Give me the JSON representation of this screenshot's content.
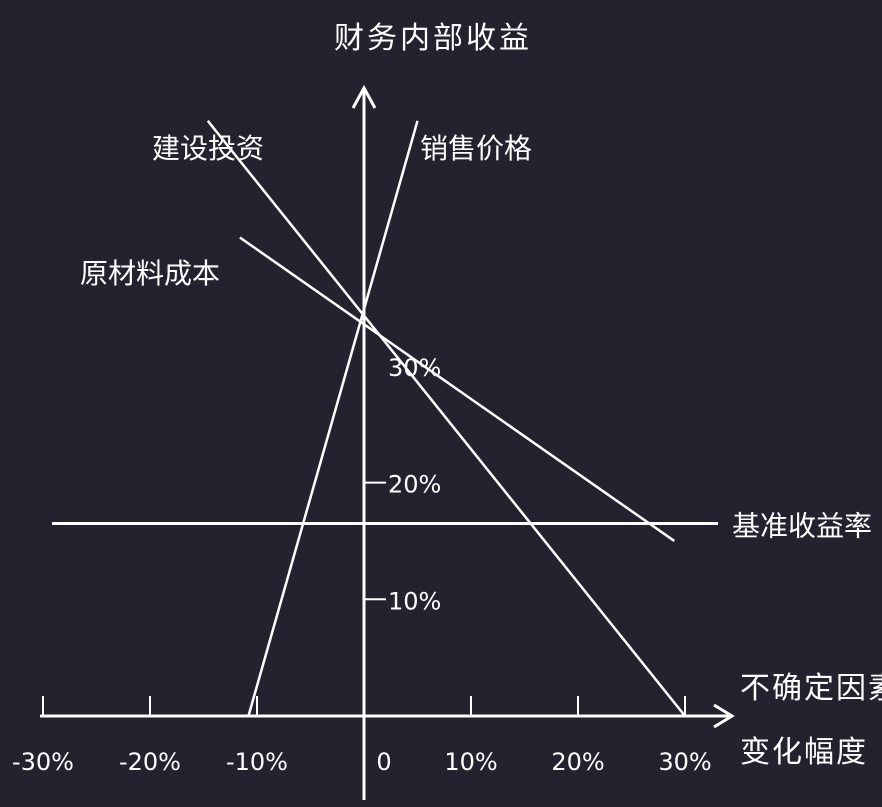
{
  "colors": {
    "background": "#25222f",
    "foreground": "#ffffff"
  },
  "chart_data": {
    "type": "line",
    "ylabel": "财务内部收益",
    "xlabel_line1": "不确定因素",
    "xlabel_line2": "变化幅度",
    "x_unit": "%",
    "y_unit": "%",
    "xlim": [
      -30,
      30
    ],
    "ylim": [
      0,
      30
    ],
    "x_ticks": [
      {
        "value": -30,
        "label": "-30%"
      },
      {
        "value": -20,
        "label": "-20%"
      },
      {
        "value": -10,
        "label": "-10%"
      },
      {
        "value": 0,
        "label": "0"
      },
      {
        "value": 10,
        "label": "10%"
      },
      {
        "value": 20,
        "label": "20%"
      },
      {
        "value": 30,
        "label": "30%"
      }
    ],
    "y_ticks": [
      {
        "value": 10,
        "label": "10%"
      },
      {
        "value": 20,
        "label": "20%"
      },
      {
        "value": 30,
        "label": "30%"
      }
    ],
    "series": [
      {
        "name": "建设投资",
        "points": [
          [
            -14.6,
            51
          ],
          [
            30,
            0
          ]
        ]
      },
      {
        "name": "销售价格",
        "points": [
          [
            -10.8,
            0
          ],
          [
            5,
            51
          ]
        ]
      },
      {
        "name": "原材料成本",
        "points": [
          [
            -11.6,
            41
          ],
          [
            29,
            15
          ]
        ]
      }
    ],
    "reference_line": {
      "name": "基准收益率",
      "value": 16.5
    }
  }
}
